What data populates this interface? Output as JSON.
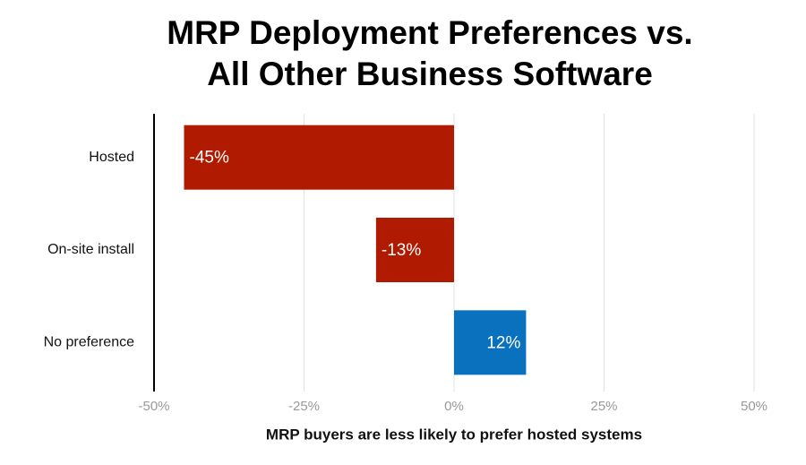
{
  "chart_data": {
    "type": "hbar",
    "title": "MRP Deployment Preferences vs. All Other Business Software",
    "x_label": "MRP buyers are less likely to prefer hosted systems",
    "categories": [
      "Hosted",
      "On-site install",
      "No preference"
    ],
    "values": [
      -45,
      -13,
      12
    ],
    "value_labels": [
      "-45%",
      "-13%",
      "12%"
    ],
    "colors": [
      "#b01a00",
      "#b01a00",
      "#0a71bf"
    ],
    "xlim": [
      -50,
      50
    ],
    "xticks": [
      {
        "value": -50,
        "label": "-50%"
      },
      {
        "value": -25,
        "label": "-25%"
      },
      {
        "value": 0,
        "label": "0%"
      },
      {
        "value": 25,
        "label": "25%"
      },
      {
        "value": 50,
        "label": "50%"
      }
    ],
    "grid": true
  }
}
